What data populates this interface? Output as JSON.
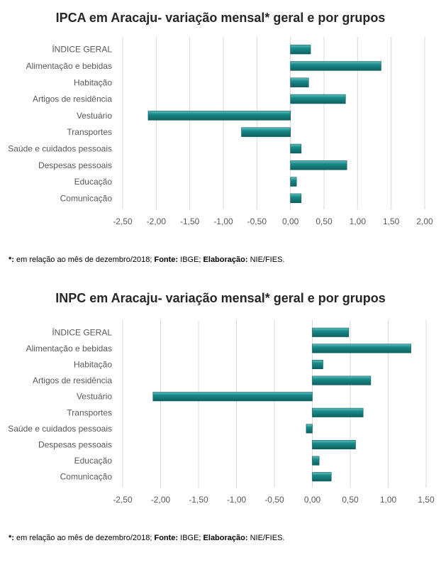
{
  "chart_data": [
    {
      "type": "bar",
      "orientation": "horizontal",
      "title": "IPCA em Aracaju- variação mensal* geral e por grupos",
      "categories": [
        "ÍNDICE GERAL",
        "Alimentação e bebidas",
        "Habitação",
        "Artigos de residência",
        "Vestuário",
        "Transportes",
        "Saúde e cuidados pessoais",
        "Despesas pessoais",
        "Educação",
        "Comunicação"
      ],
      "values": [
        0.3,
        1.35,
        0.27,
        0.82,
        -2.12,
        -0.73,
        0.16,
        0.84,
        0.09,
        0.16
      ],
      "xlim": [
        -2.5,
        2.0
      ],
      "ticks": [
        -2.5,
        -2.0,
        -1.5,
        -1.0,
        -0.5,
        0.0,
        0.5,
        1.0,
        1.5,
        2.0
      ],
      "tick_labels": [
        "-2,50",
        "-2,00",
        "-1,50",
        "-1,00",
        "-0,50",
        "0,00",
        "0,50",
        "1,00",
        "1,50",
        "2,00"
      ],
      "grid": true,
      "bar_color": "#1a8a8a"
    },
    {
      "type": "bar",
      "orientation": "horizontal",
      "title": "INPC em Aracaju- variação mensal* geral e por grupos",
      "categories": [
        "ÍNDICE GERAL",
        "Alimentação e bebidas",
        "Habitação",
        "Artigos de residência",
        "Vestuário",
        "Transportes",
        "Saúde e cuidados pessoais",
        "Despesas pessoais",
        "Educação",
        "Comunicação"
      ],
      "values": [
        0.48,
        1.3,
        0.14,
        0.77,
        -2.1,
        0.67,
        -0.08,
        0.57,
        0.09,
        0.25
      ],
      "xlim": [
        -2.5,
        1.5
      ],
      "ticks": [
        -2.5,
        -2.0,
        -1.5,
        -1.0,
        -0.5,
        0.0,
        0.5,
        1.0,
        1.5
      ],
      "tick_labels": [
        "-2,50",
        "-2,00",
        "-1,50",
        "-1,00",
        "-0,50",
        "0,00",
        "0,50",
        "1,00",
        "1,50"
      ],
      "grid": true,
      "bar_color": "#1a8a8a"
    }
  ],
  "notes": {
    "star": "*:",
    "text1": " em relação ao mês de dezembro/2018; ",
    "fonte_label": "Fonte:",
    "fonte_value": " IBGE; ",
    "elab_label": "Elaboração:",
    "elab_value": " NIE/FIES."
  }
}
